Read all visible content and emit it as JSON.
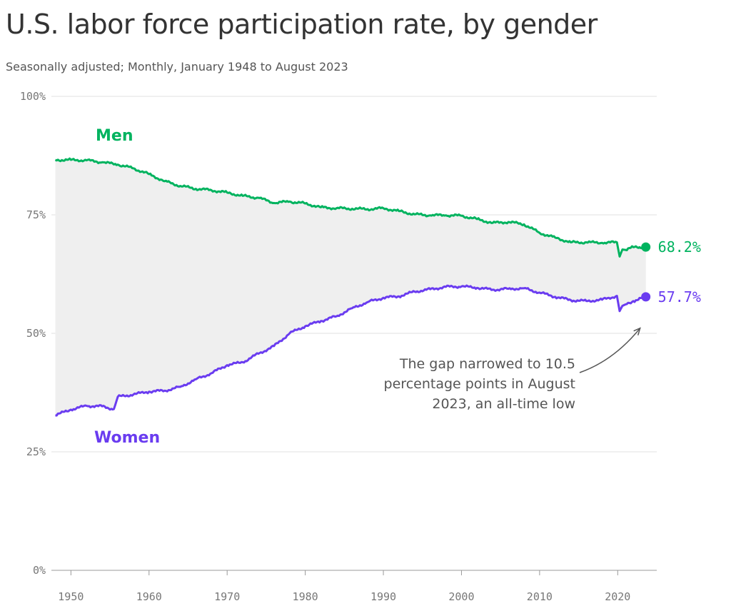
{
  "title": "U.S. labor force participation rate, by gender",
  "subtitle": "Seasonally adjusted; Monthly, January 1948 to August 2023",
  "colors": {
    "men": "#00b35f",
    "women": "#6a3cf0",
    "gap_fill": "#efefef",
    "grid": "#e2e2e2",
    "annotation": "#555555"
  },
  "chart_data": {
    "type": "line",
    "title": "U.S. labor force participation rate, by gender",
    "subtitle": "Seasonally adjusted; Monthly, January 1948 to August 2023",
    "xlabel": "",
    "ylabel": "",
    "xlim": [
      1947.5,
      2025
    ],
    "ylim": [
      0,
      100
    ],
    "x_ticks": [
      1950,
      1960,
      1970,
      1980,
      1990,
      2000,
      2010,
      2020
    ],
    "x_tick_labels": [
      "1950",
      "1960",
      "1970",
      "1980",
      "1990",
      "2000",
      "2010",
      "2020"
    ],
    "y_ticks": [
      0,
      25,
      50,
      75,
      100
    ],
    "y_tick_labels": [
      "0%",
      "25%",
      "50%",
      "75%",
      "100%"
    ],
    "grid": "horizontal",
    "series": [
      {
        "name": "Men",
        "x": [
          1948,
          1950,
          1952,
          1954,
          1956,
          1958,
          1960,
          1962,
          1964,
          1966,
          1968,
          1970,
          1972,
          1974,
          1976,
          1978,
          1980,
          1982,
          1984,
          1986,
          1988,
          1990,
          1992,
          1994,
          1996,
          1998,
          2000,
          2002,
          2004,
          2006,
          2008,
          2010,
          2012,
          2014,
          2016,
          2018,
          2019.9,
          2020.25,
          2020.6,
          2021,
          2022,
          2023.6
        ],
        "values": [
          86.6,
          86.6,
          86.5,
          86.1,
          85.6,
          84.8,
          83.6,
          82.1,
          81.1,
          80.5,
          80.2,
          79.7,
          79.0,
          78.6,
          77.5,
          77.8,
          77.4,
          76.6,
          76.4,
          76.3,
          76.2,
          76.4,
          75.8,
          75.1,
          74.9,
          74.9,
          74.8,
          74.1,
          73.3,
          73.5,
          73.0,
          71.2,
          70.2,
          69.2,
          69.2,
          69.1,
          69.2,
          66.2,
          67.7,
          67.6,
          68.2,
          68.2
        ]
      },
      {
        "name": "Women",
        "x": [
          1948,
          1950,
          1952,
          1954,
          1955.5,
          1956,
          1958,
          1960,
          1962,
          1964,
          1966,
          1968,
          1970,
          1972,
          1974,
          1976,
          1978,
          1980,
          1982,
          1984,
          1986,
          1988,
          1990,
          1992,
          1994,
          1996,
          1998,
          2000,
          2002,
          2004,
          2006,
          2008,
          2010,
          2012,
          2014,
          2016,
          2018,
          2019.9,
          2020.25,
          2020.6,
          2021,
          2022,
          2023.6
        ],
        "values": [
          32.7,
          33.9,
          34.7,
          34.6,
          34.0,
          36.6,
          37.1,
          37.7,
          37.9,
          38.7,
          40.3,
          41.6,
          43.3,
          43.9,
          45.7,
          47.3,
          50.0,
          51.5,
          52.6,
          53.6,
          55.3,
          56.6,
          57.5,
          57.8,
          58.8,
          59.3,
          59.8,
          59.9,
          59.6,
          59.2,
          59.4,
          59.5,
          58.6,
          57.7,
          57.0,
          56.8,
          57.1,
          57.9,
          54.7,
          55.8,
          56.1,
          56.8,
          57.7
        ]
      }
    ],
    "gap_fill": true,
    "end_labels": [
      {
        "series": "Men",
        "text": "68.2%"
      },
      {
        "series": "Women",
        "text": "57.7%"
      }
    ],
    "series_labels": [
      {
        "series": "Men",
        "text": "Men"
      },
      {
        "series": "Women",
        "text": "Women"
      }
    ],
    "annotation": {
      "lines": [
        "The gap narrowed to 10.5",
        "percentage points in August",
        "2023, an all-time low"
      ],
      "target_x": 2023.6,
      "target_y": 50.5
    }
  }
}
